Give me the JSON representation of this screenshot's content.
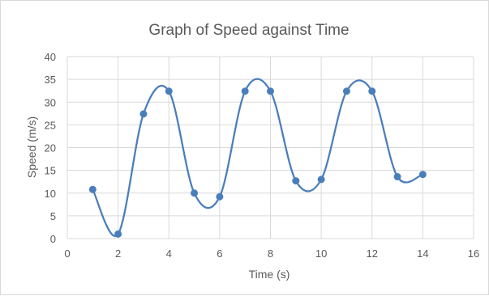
{
  "chart_data": {
    "type": "scatter",
    "title": "Graph of Speed against Time",
    "xlabel": "Time (s)",
    "ylabel": "Speed  (m/s)",
    "xlim": [
      0,
      16
    ],
    "ylim": [
      0,
      40
    ],
    "x_ticks": [
      "0",
      "2",
      "4",
      "6",
      "8",
      "10",
      "12",
      "14",
      "16"
    ],
    "y_ticks": [
      "0",
      "5",
      "10",
      "15",
      "20",
      "25",
      "30",
      "35",
      "40"
    ],
    "grid": true,
    "legend": "none",
    "line_style": "smoothed",
    "series": [
      {
        "color": "#4a7ebb",
        "x": [
          1,
          2,
          3,
          4,
          5,
          6,
          7,
          8,
          9,
          10,
          11,
          12,
          13,
          14
        ],
        "y": [
          10.8,
          1,
          27.4,
          32.4,
          10,
          9.2,
          32.4,
          32.4,
          12.7,
          13,
          32.4,
          32.4,
          13.6,
          14.1
        ]
      }
    ]
  }
}
